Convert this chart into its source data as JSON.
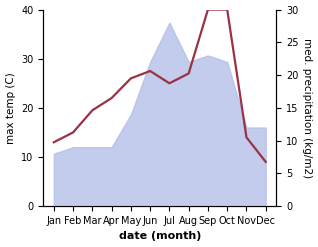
{
  "months": [
    "Jan",
    "Feb",
    "Mar",
    "Apr",
    "May",
    "Jun",
    "Jul",
    "Aug",
    "Sep",
    "Oct",
    "Nov",
    "Dec"
  ],
  "temp_line": [
    13,
    15,
    19.5,
    22,
    26,
    27.5,
    25,
    27,
    40,
    40,
    14,
    9
  ],
  "precipitation": [
    8,
    9,
    9,
    9,
    14,
    22,
    28,
    22,
    23,
    22,
    12,
    12
  ],
  "ylim_left": [
    0,
    40
  ],
  "ylim_right": [
    0,
    30
  ],
  "left_ticks": [
    0,
    10,
    20,
    30,
    40
  ],
  "right_ticks": [
    0,
    5,
    10,
    15,
    20,
    25,
    30
  ],
  "ylabel_left": "max temp (C)",
  "ylabel_right": "med. precipitation (kg/m2)",
  "xlabel": "date (month)",
  "fill_color": "#b0bce8",
  "fill_alpha": 0.75,
  "line_color": "#993344",
  "line_width": 1.6,
  "bg_color": "#ffffff",
  "label_fontsize": 7.5,
  "tick_fontsize": 7.0,
  "xlabel_fontsize": 8.0
}
